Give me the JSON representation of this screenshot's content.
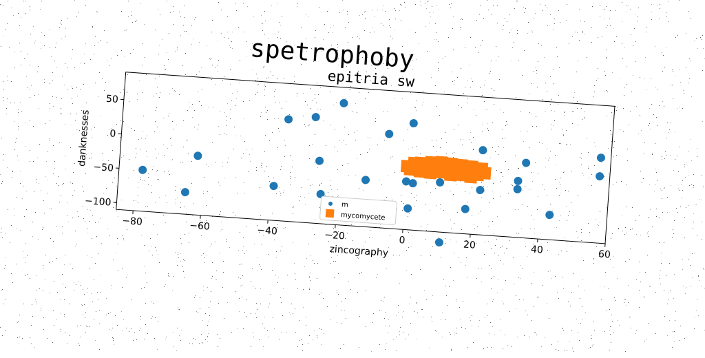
{
  "suptitle": "spetrophoby",
  "chart_data": {
    "type": "scatter",
    "title": "epitria sw",
    "xlabel": "zincography",
    "ylabel": "danknesses",
    "xlim": [
      -85,
      60
    ],
    "ylim": [
      -110,
      90
    ],
    "xticks": [
      -80,
      -60,
      -40,
      -20,
      0,
      20,
      40,
      60
    ],
    "yticks": [
      -100,
      -50,
      0,
      50
    ],
    "grid": false,
    "legend": {
      "position": "bottom-center"
    },
    "series": [
      {
        "name": "m",
        "marker": "circle",
        "color": "#1f77b4",
        "points": [
          [
            -78,
            -50
          ],
          [
            -62,
            -24
          ],
          [
            -65,
            -78
          ],
          [
            -36,
            38
          ],
          [
            -28,
            44
          ],
          [
            -39,
            -60
          ],
          [
            -20,
            67
          ],
          [
            -26,
            -19
          ],
          [
            -25,
            -67
          ],
          [
            -12,
            -42
          ],
          [
            -6,
            27
          ],
          [
            -6,
            -75
          ],
          [
            -14,
            -97
          ],
          [
            1,
            45
          ],
          [
            0,
            -40
          ],
          [
            1,
            -79
          ],
          [
            2,
            -42
          ],
          [
            10,
            -38
          ],
          [
            11,
            -125
          ],
          [
            18,
            -74
          ],
          [
            22,
            13
          ],
          [
            22,
            -45
          ],
          [
            33,
            -28
          ],
          [
            33,
            -40
          ],
          [
            35,
            -1
          ],
          [
            43,
            -74
          ],
          [
            57,
            14
          ],
          [
            57,
            -13
          ]
        ]
      },
      {
        "name": "mycomycete",
        "marker": "square",
        "color": "#ff7f0e",
        "points": [
          [
            0,
            -18
          ],
          [
            1,
            -22
          ],
          [
            2,
            -13
          ],
          [
            3,
            -20
          ],
          [
            4,
            -12
          ],
          [
            4,
            -24
          ],
          [
            5,
            -16
          ],
          [
            6,
            -21
          ],
          [
            7,
            -10
          ],
          [
            7,
            -25
          ],
          [
            8,
            -14
          ],
          [
            9,
            -19
          ],
          [
            10,
            -9
          ],
          [
            10,
            -23
          ],
          [
            11,
            -15
          ],
          [
            12,
            -20
          ],
          [
            13,
            -10
          ],
          [
            13,
            -26
          ],
          [
            14,
            -16
          ],
          [
            15,
            -21
          ],
          [
            16,
            -11
          ],
          [
            16,
            -25
          ],
          [
            17,
            -17
          ],
          [
            18,
            -22
          ],
          [
            19,
            -12
          ],
          [
            19,
            -27
          ],
          [
            20,
            -18
          ],
          [
            21,
            -23
          ],
          [
            22,
            -14
          ],
          [
            23,
            -20
          ]
        ]
      }
    ]
  }
}
